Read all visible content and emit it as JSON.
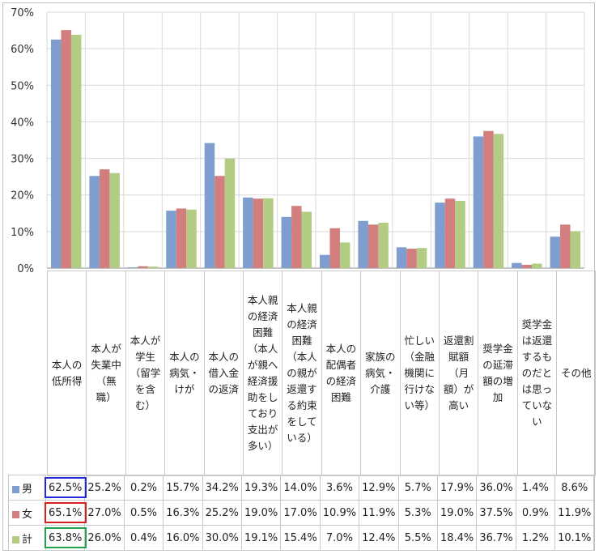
{
  "chart_data": {
    "type": "bar",
    "title": "",
    "xlabel": "",
    "ylabel": "",
    "ylim": [
      0,
      70
    ],
    "yticks": [
      "0%",
      "10%",
      "20%",
      "30%",
      "40%",
      "50%",
      "60%",
      "70%"
    ],
    "ytick_values": [
      0,
      10,
      20,
      30,
      40,
      50,
      60,
      70
    ],
    "grid": true,
    "categories": [
      "本人の低所得",
      "本人が失業中（無職）",
      "本人が学生（留学を含む）",
      "本人の病気・けが",
      "本人の借入金の返済",
      "本人親の経済困難（本人が親へ経済援助をしており支出が多い）",
      "本人親の経済困難（本人の親が返還する約束をしている）",
      "本人の配偶者の経済困難",
      "家族の病気・介護",
      "忙しい（金融機関に行けない等）",
      "返還割賦額（月額）が高い",
      "奨学金の延滞額の増加",
      "奨学金は返還するものだとは思っていない",
      "その他"
    ],
    "series": [
      {
        "name": "男",
        "color": "#7f9ecf",
        "values": [
          62.5,
          25.2,
          0.2,
          15.7,
          34.2,
          19.3,
          14.0,
          3.6,
          12.9,
          5.7,
          17.9,
          36.0,
          1.4,
          8.6
        ],
        "labels": [
          "62.5%",
          "25.2%",
          "0.2%",
          "15.7%",
          "34.2%",
          "19.3%",
          "14.0%",
          "3.6%",
          "12.9%",
          "5.7%",
          "17.9%",
          "36.0%",
          "1.4%",
          "8.6%"
        ]
      },
      {
        "name": "女",
        "color": "#d27e7e",
        "values": [
          65.1,
          27.0,
          0.5,
          16.3,
          25.2,
          19.0,
          17.0,
          10.9,
          11.9,
          5.3,
          19.0,
          37.5,
          0.9,
          11.9
        ],
        "labels": [
          "65.1%",
          "27.0%",
          "0.5%",
          "16.3%",
          "25.2%",
          "19.0%",
          "17.0%",
          "10.9%",
          "11.9%",
          "5.3%",
          "19.0%",
          "37.5%",
          "0.9%",
          "11.9%"
        ]
      },
      {
        "name": "計",
        "color": "#b3cc84",
        "values": [
          63.8,
          26.0,
          0.4,
          16.0,
          30.0,
          19.1,
          15.4,
          7.0,
          12.4,
          5.5,
          18.4,
          36.7,
          1.2,
          10.1
        ],
        "labels": [
          "63.8%",
          "26.0%",
          "0.4%",
          "16.0%",
          "30.0%",
          "19.1%",
          "15.4%",
          "7.0%",
          "12.4%",
          "5.5%",
          "18.4%",
          "36.7%",
          "1.2%",
          "10.1%"
        ]
      }
    ],
    "highlight_colors": [
      "#1f2bd6",
      "#d61f1f",
      "#1fa34a"
    ]
  }
}
